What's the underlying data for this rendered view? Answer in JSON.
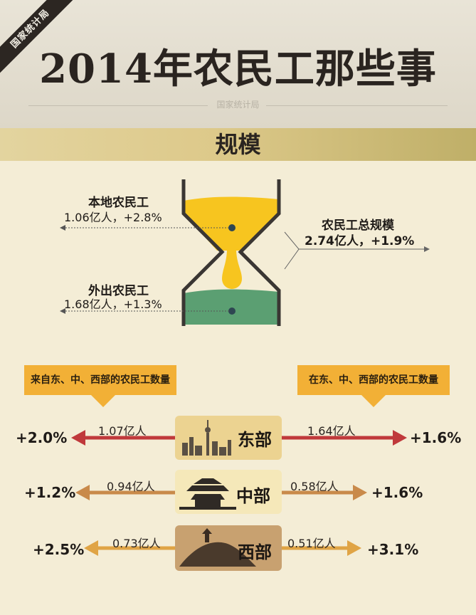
{
  "header": {
    "ribbon": "国家统计局",
    "title": "2014年农民工那些事",
    "subtitle": "国家统计局"
  },
  "section": {
    "title": "规模"
  },
  "scale": {
    "local": {
      "label": "本地农民工",
      "value": "1.06亿人，+2.8%"
    },
    "migrant": {
      "label": "外出农民工",
      "value": "1.68亿人，+1.3%"
    },
    "total": {
      "label": "农民工总规模",
      "value": "2.74亿人，+1.9%"
    }
  },
  "callouts": {
    "from": "来自东、中、西部的农民工数量",
    "in": "在东、中、西部的农民工数量"
  },
  "regions": [
    {
      "name": "东部",
      "from_value": "1.07亿人",
      "from_pct": "+2.0%",
      "in_value": "1.64亿人",
      "in_pct": "+1.6%",
      "arrow_color": "#c0393b"
    },
    {
      "name": "中部",
      "from_value": "0.94亿人",
      "from_pct": "+1.2%",
      "in_value": "0.58亿人",
      "in_pct": "+1.6%",
      "arrow_color": "#c98a4a"
    },
    {
      "name": "西部",
      "from_value": "0.73亿人",
      "from_pct": "+2.5%",
      "in_value": "0.51亿人",
      "in_pct": "+3.1%",
      "arrow_color": "#e0a445"
    }
  ],
  "colors": {
    "sand": "#f7c51f",
    "water": "#5b9f72",
    "frame": "#3a3633"
  }
}
